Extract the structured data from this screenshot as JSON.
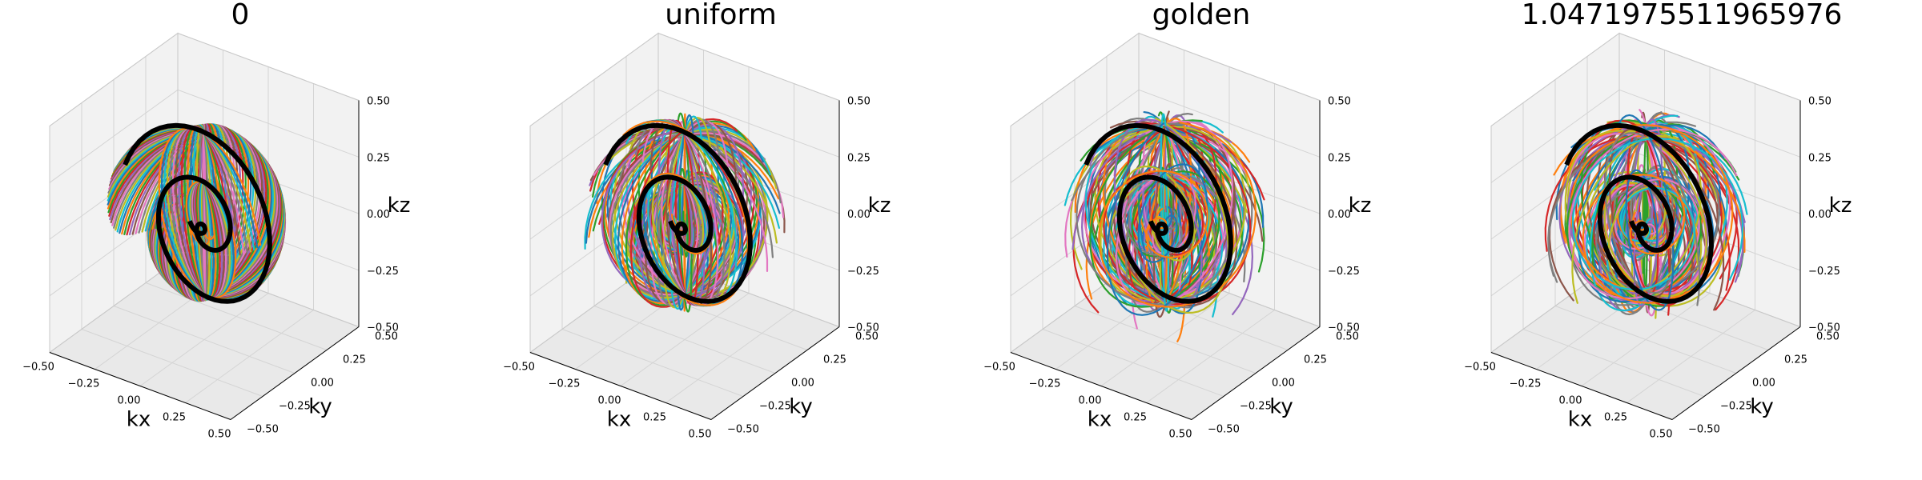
{
  "chart_data": [
    {
      "type": "line3d",
      "title": "0",
      "variant": "zero",
      "xlabel": "kx",
      "ylabel": "ky",
      "zlabel": "kz",
      "xlim": [
        -0.5,
        0.5
      ],
      "ylim": [
        -0.5,
        0.5
      ],
      "zlim": [
        -0.5,
        0.5
      ],
      "xticks": [
        "−0.50",
        "−0.25",
        "0.00",
        "0.25",
        "0.50"
      ],
      "yticks": [
        "−0.50",
        "−0.25",
        "0.00",
        "0.25",
        "0.50"
      ],
      "zticks": [
        "−0.50",
        "−0.25",
        "0.00",
        "0.25",
        "0.50"
      ],
      "grid": true,
      "n_trajectories": 72,
      "highlighted_trajectory": "black"
    },
    {
      "type": "line3d",
      "title": "uniform",
      "variant": "uniform",
      "xlabel": "kx",
      "ylabel": "ky",
      "zlabel": "kz",
      "xlim": [
        -0.5,
        0.5
      ],
      "ylim": [
        -0.5,
        0.5
      ],
      "zlim": [
        -0.5,
        0.5
      ],
      "xticks": [
        "−0.50",
        "−0.25",
        "0.00",
        "0.25",
        "0.50"
      ],
      "yticks": [
        "−0.50",
        "−0.25",
        "0.00",
        "0.25",
        "0.50"
      ],
      "zticks": [
        "−0.50",
        "−0.25",
        "0.00",
        "0.25",
        "0.50"
      ],
      "grid": true,
      "n_trajectories": 72,
      "highlighted_trajectory": "black"
    },
    {
      "type": "line3d",
      "title": "golden",
      "variant": "golden",
      "xlabel": "kx",
      "ylabel": "ky",
      "zlabel": "kz",
      "xlim": [
        -0.5,
        0.5
      ],
      "ylim": [
        -0.5,
        0.5
      ],
      "zlim": [
        -0.5,
        0.5
      ],
      "xticks": [
        "−0.50",
        "−0.25",
        "0.00",
        "0.25",
        "0.50"
      ],
      "yticks": [
        "−0.50",
        "−0.25",
        "0.00",
        "0.25",
        "0.50"
      ],
      "zticks": [
        "−0.50",
        "−0.25",
        "0.00",
        "0.25",
        "0.50"
      ],
      "grid": true,
      "n_trajectories": 72,
      "highlighted_trajectory": "black"
    },
    {
      "type": "line3d",
      "title": "1.0471975511965976",
      "variant": "angle",
      "xlabel": "kx",
      "ylabel": "ky",
      "zlabel": "kz",
      "xlim": [
        -0.5,
        0.5
      ],
      "ylim": [
        -0.5,
        0.5
      ],
      "zlim": [
        -0.5,
        0.5
      ],
      "xticks": [
        "−0.50",
        "−0.25",
        "0.00",
        "0.25",
        "0.50"
      ],
      "yticks": [
        "−0.50",
        "−0.25",
        "0.00",
        "0.25",
        "0.50"
      ],
      "zticks": [
        "−0.50",
        "−0.25",
        "0.00",
        "0.25",
        "0.50"
      ],
      "grid": true,
      "n_trajectories": 72,
      "highlighted_trajectory": "black"
    }
  ],
  "palette": [
    "#1f77b4",
    "#ff7f0e",
    "#2ca02c",
    "#d62728",
    "#9467bd",
    "#8c564b",
    "#e377c2",
    "#7f7f7f",
    "#bcbd22",
    "#17becf"
  ],
  "pane_colors": {
    "side": "#f2f2f2",
    "floor": "#e9e9e9",
    "grid": "#d4d4d4",
    "axis": "#000000"
  }
}
